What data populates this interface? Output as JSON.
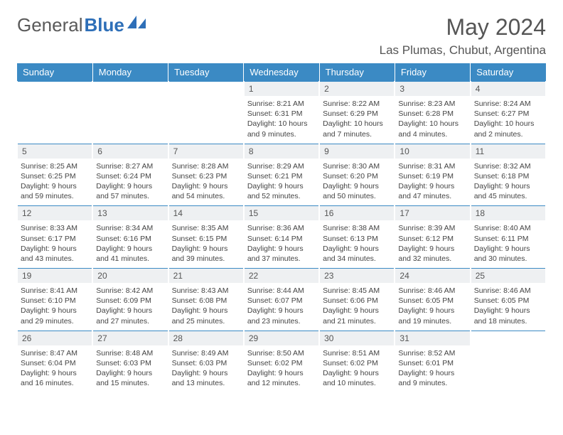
{
  "logo": {
    "text_gray": "General",
    "text_blue": "Blue"
  },
  "header": {
    "month": "May 2024",
    "location": "Las Plumas, Chubut, Argentina"
  },
  "colors": {
    "header_bg": "#3b8ac4",
    "header_text": "#ffffff",
    "daynum_bg": "#eef0f2",
    "rule": "#3b8ac4",
    "logo_blue": "#2e6fb8"
  },
  "weekdays": [
    "Sunday",
    "Monday",
    "Tuesday",
    "Wednesday",
    "Thursday",
    "Friday",
    "Saturday"
  ],
  "label_sunrise": "Sunrise: ",
  "label_sunset": "Sunset: ",
  "label_daylight": "Daylight: ",
  "weeks": [
    [
      null,
      null,
      null,
      {
        "n": "1",
        "sunrise": "8:21 AM",
        "sunset": "6:31 PM",
        "dl1": "10 hours",
        "dl2": "and 9 minutes."
      },
      {
        "n": "2",
        "sunrise": "8:22 AM",
        "sunset": "6:29 PM",
        "dl1": "10 hours",
        "dl2": "and 7 minutes."
      },
      {
        "n": "3",
        "sunrise": "8:23 AM",
        "sunset": "6:28 PM",
        "dl1": "10 hours",
        "dl2": "and 4 minutes."
      },
      {
        "n": "4",
        "sunrise": "8:24 AM",
        "sunset": "6:27 PM",
        "dl1": "10 hours",
        "dl2": "and 2 minutes."
      }
    ],
    [
      {
        "n": "5",
        "sunrise": "8:25 AM",
        "sunset": "6:25 PM",
        "dl1": "9 hours",
        "dl2": "and 59 minutes."
      },
      {
        "n": "6",
        "sunrise": "8:27 AM",
        "sunset": "6:24 PM",
        "dl1": "9 hours",
        "dl2": "and 57 minutes."
      },
      {
        "n": "7",
        "sunrise": "8:28 AM",
        "sunset": "6:23 PM",
        "dl1": "9 hours",
        "dl2": "and 54 minutes."
      },
      {
        "n": "8",
        "sunrise": "8:29 AM",
        "sunset": "6:21 PM",
        "dl1": "9 hours",
        "dl2": "and 52 minutes."
      },
      {
        "n": "9",
        "sunrise": "8:30 AM",
        "sunset": "6:20 PM",
        "dl1": "9 hours",
        "dl2": "and 50 minutes."
      },
      {
        "n": "10",
        "sunrise": "8:31 AM",
        "sunset": "6:19 PM",
        "dl1": "9 hours",
        "dl2": "and 47 minutes."
      },
      {
        "n": "11",
        "sunrise": "8:32 AM",
        "sunset": "6:18 PM",
        "dl1": "9 hours",
        "dl2": "and 45 minutes."
      }
    ],
    [
      {
        "n": "12",
        "sunrise": "8:33 AM",
        "sunset": "6:17 PM",
        "dl1": "9 hours",
        "dl2": "and 43 minutes."
      },
      {
        "n": "13",
        "sunrise": "8:34 AM",
        "sunset": "6:16 PM",
        "dl1": "9 hours",
        "dl2": "and 41 minutes."
      },
      {
        "n": "14",
        "sunrise": "8:35 AM",
        "sunset": "6:15 PM",
        "dl1": "9 hours",
        "dl2": "and 39 minutes."
      },
      {
        "n": "15",
        "sunrise": "8:36 AM",
        "sunset": "6:14 PM",
        "dl1": "9 hours",
        "dl2": "and 37 minutes."
      },
      {
        "n": "16",
        "sunrise": "8:38 AM",
        "sunset": "6:13 PM",
        "dl1": "9 hours",
        "dl2": "and 34 minutes."
      },
      {
        "n": "17",
        "sunrise": "8:39 AM",
        "sunset": "6:12 PM",
        "dl1": "9 hours",
        "dl2": "and 32 minutes."
      },
      {
        "n": "18",
        "sunrise": "8:40 AM",
        "sunset": "6:11 PM",
        "dl1": "9 hours",
        "dl2": "and 30 minutes."
      }
    ],
    [
      {
        "n": "19",
        "sunrise": "8:41 AM",
        "sunset": "6:10 PM",
        "dl1": "9 hours",
        "dl2": "and 29 minutes."
      },
      {
        "n": "20",
        "sunrise": "8:42 AM",
        "sunset": "6:09 PM",
        "dl1": "9 hours",
        "dl2": "and 27 minutes."
      },
      {
        "n": "21",
        "sunrise": "8:43 AM",
        "sunset": "6:08 PM",
        "dl1": "9 hours",
        "dl2": "and 25 minutes."
      },
      {
        "n": "22",
        "sunrise": "8:44 AM",
        "sunset": "6:07 PM",
        "dl1": "9 hours",
        "dl2": "and 23 minutes."
      },
      {
        "n": "23",
        "sunrise": "8:45 AM",
        "sunset": "6:06 PM",
        "dl1": "9 hours",
        "dl2": "and 21 minutes."
      },
      {
        "n": "24",
        "sunrise": "8:46 AM",
        "sunset": "6:05 PM",
        "dl1": "9 hours",
        "dl2": "and 19 minutes."
      },
      {
        "n": "25",
        "sunrise": "8:46 AM",
        "sunset": "6:05 PM",
        "dl1": "9 hours",
        "dl2": "and 18 minutes."
      }
    ],
    [
      {
        "n": "26",
        "sunrise": "8:47 AM",
        "sunset": "6:04 PM",
        "dl1": "9 hours",
        "dl2": "and 16 minutes."
      },
      {
        "n": "27",
        "sunrise": "8:48 AM",
        "sunset": "6:03 PM",
        "dl1": "9 hours",
        "dl2": "and 15 minutes."
      },
      {
        "n": "28",
        "sunrise": "8:49 AM",
        "sunset": "6:03 PM",
        "dl1": "9 hours",
        "dl2": "and 13 minutes."
      },
      {
        "n": "29",
        "sunrise": "8:50 AM",
        "sunset": "6:02 PM",
        "dl1": "9 hours",
        "dl2": "and 12 minutes."
      },
      {
        "n": "30",
        "sunrise": "8:51 AM",
        "sunset": "6:02 PM",
        "dl1": "9 hours",
        "dl2": "and 10 minutes."
      },
      {
        "n": "31",
        "sunrise": "8:52 AM",
        "sunset": "6:01 PM",
        "dl1": "9 hours",
        "dl2": "and 9 minutes."
      },
      null
    ]
  ]
}
